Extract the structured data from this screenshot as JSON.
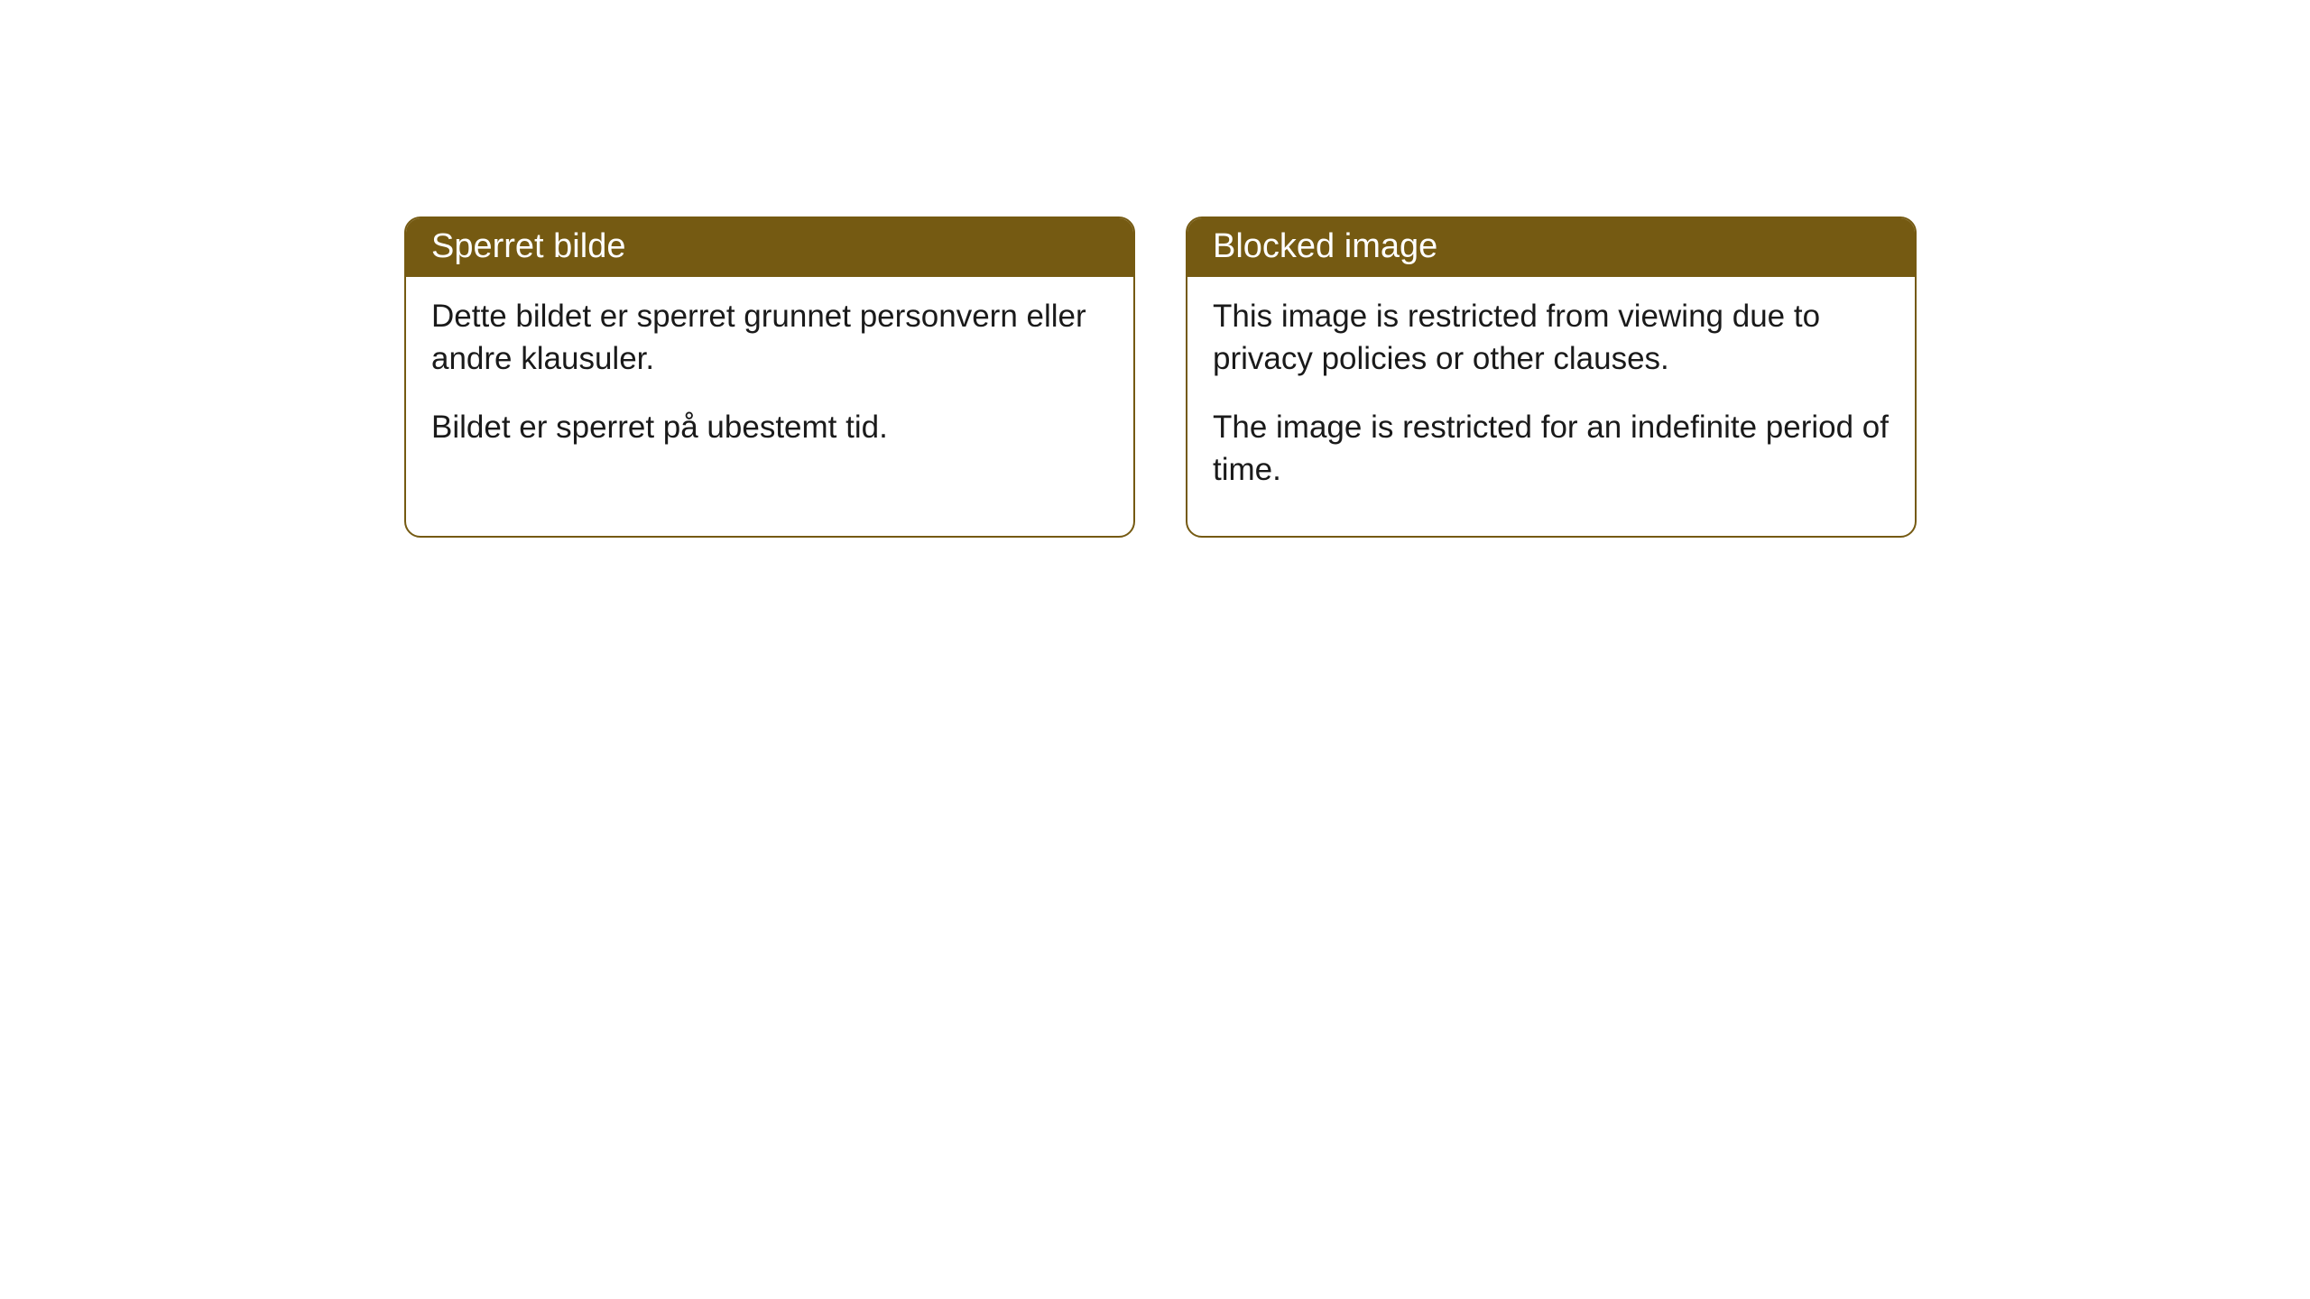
{
  "cards": [
    {
      "title": "Sperret bilde",
      "paragraph1": "Dette bildet er sperret grunnet personvern eller andre klausuler.",
      "paragraph2": "Bildet er sperret på ubestemt tid."
    },
    {
      "title": "Blocked image",
      "paragraph1": "This image is restricted from viewing due to privacy policies or other clauses.",
      "paragraph2": "The image is restricted for an indefinite period of time."
    }
  ],
  "style": {
    "header_bg": "#755a12",
    "header_text": "#ffffff",
    "border_color": "#755a12",
    "body_text": "#1a1a1a",
    "background": "#ffffff",
    "border_radius": 18,
    "title_fontsize": 38,
    "body_fontsize": 35
  }
}
